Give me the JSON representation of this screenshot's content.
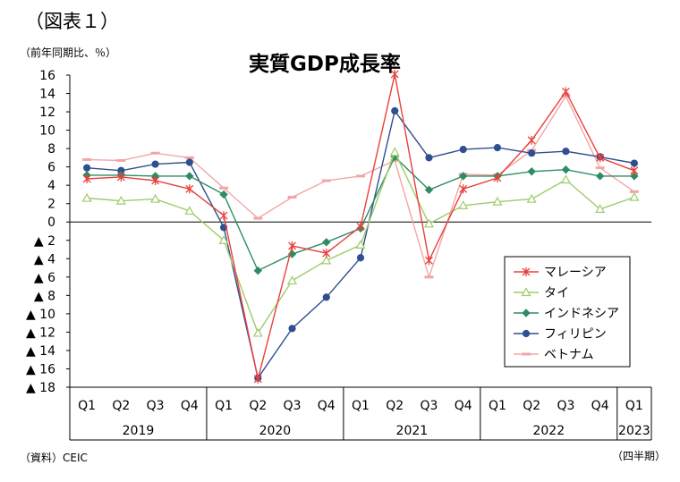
{
  "figure_label": "（図表１）",
  "unit_label": "（前年同期比、％）",
  "source": "（資料）CEIC",
  "period_label": "（四半期）",
  "chart_data": {
    "type": "line",
    "title": "実質GDP成長率",
    "categories": [
      "Q1",
      "Q2",
      "Q3",
      "Q4",
      "Q1",
      "Q2",
      "Q3",
      "Q4",
      "Q1",
      "Q2",
      "Q3",
      "Q4",
      "Q1",
      "Q2",
      "Q3",
      "Q4",
      "Q1"
    ],
    "year_groups": [
      {
        "label": "2019",
        "start": 0,
        "count": 4
      },
      {
        "label": "2020",
        "start": 4,
        "count": 4
      },
      {
        "label": "2021",
        "start": 8,
        "count": 4
      },
      {
        "label": "2022",
        "start": 12,
        "count": 4
      },
      {
        "label": "2023",
        "start": 16,
        "count": 1
      }
    ],
    "ylim": [
      -18,
      16
    ],
    "y_ticks": [
      16,
      14,
      12,
      10,
      8,
      6,
      4,
      2,
      0,
      -2,
      -4,
      -6,
      -8,
      -10,
      -12,
      -14,
      -16,
      -18
    ],
    "y_tick_labels": [
      "16",
      "14",
      "12",
      "10",
      "8",
      "6",
      "4",
      "2",
      "0",
      "▲ 2",
      "▲ 4",
      "▲ 6",
      "▲ 8",
      "▲ 10",
      "▲ 12",
      "▲ 14",
      "▲ 16",
      "▲ 18"
    ],
    "legend_position": "bottom-right",
    "grid": false,
    "series": [
      {
        "name": "マレーシア",
        "color": "#e8403c",
        "marker": "star",
        "values": [
          4.7,
          4.9,
          4.5,
          3.6,
          0.7,
          -17.1,
          -2.6,
          -3.4,
          -0.5,
          16.1,
          -4.2,
          3.6,
          4.8,
          8.9,
          14.2,
          7.0,
          5.6
        ]
      },
      {
        "name": "タイ",
        "color": "#9dcc6a",
        "marker": "triangle",
        "values": [
          2.6,
          2.3,
          2.5,
          1.2,
          -2.0,
          -12.1,
          -6.4,
          -4.2,
          -2.5,
          7.6,
          -0.2,
          1.8,
          2.2,
          2.5,
          4.6,
          1.4,
          2.7
        ]
      },
      {
        "name": "インドネシア",
        "color": "#2e8c63",
        "marker": "diamond",
        "values": [
          5.1,
          5.1,
          5.0,
          5.0,
          3.0,
          -5.3,
          -3.5,
          -2.2,
          -0.7,
          7.1,
          3.5,
          5.0,
          5.0,
          5.5,
          5.7,
          5.0,
          5.0
        ]
      },
      {
        "name": "フィリピン",
        "color": "#2f4f8f",
        "marker": "circle",
        "values": [
          5.9,
          5.6,
          6.3,
          6.5,
          -0.6,
          -17.0,
          -11.6,
          -8.2,
          -3.9,
          12.1,
          7.0,
          7.9,
          8.1,
          7.5,
          7.7,
          7.1,
          6.4
        ]
      },
      {
        "name": "ベトナム",
        "color": "#f2a6a6",
        "marker": "dash",
        "values": [
          6.8,
          6.7,
          7.5,
          7.0,
          3.7,
          0.4,
          2.7,
          4.5,
          5.0,
          6.7,
          -6.0,
          5.2,
          5.1,
          7.8,
          13.7,
          5.9,
          3.3
        ]
      }
    ]
  }
}
